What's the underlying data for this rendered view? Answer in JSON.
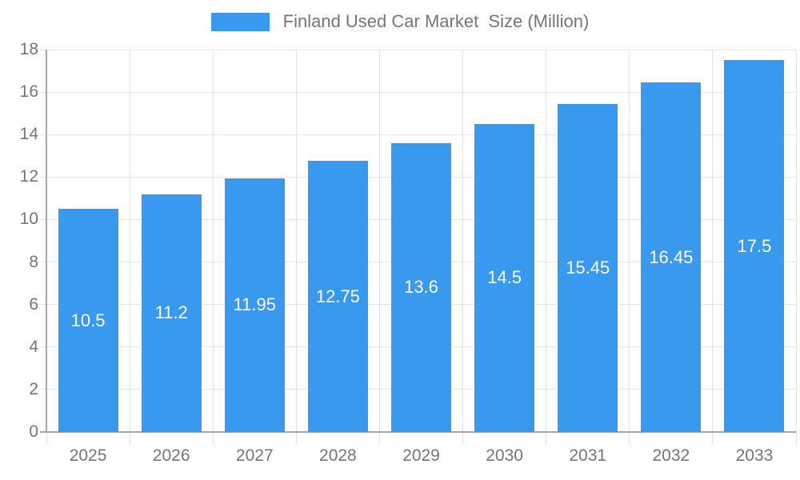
{
  "chart_data": {
    "type": "bar",
    "title": "Finland Used Car Market  Size (Million)",
    "legend_position": "top",
    "categories": [
      "2025",
      "2026",
      "2027",
      "2028",
      "2029",
      "2030",
      "2031",
      "2032",
      "2033"
    ],
    "values": [
      10.5,
      11.2,
      11.95,
      12.75,
      13.6,
      14.5,
      15.45,
      16.45,
      17.5
    ],
    "value_labels": [
      "10.5",
      "11.2",
      "11.95",
      "12.75",
      "13.6",
      "14.5",
      "15.45",
      "16.45",
      "17.5"
    ],
    "xlabel": "",
    "ylabel": "",
    "ylim": [
      0,
      18
    ],
    "ytick_step": 2,
    "grid": true,
    "colors": {
      "bar": "#3999EE",
      "bar_value_text": "#FFFFFF",
      "axis_text": "#757575",
      "legend_text": "#757575",
      "gridline": "#E6E6E6",
      "vertical_gridline": "#E0E0E0",
      "axis_line": "#A6A6A6"
    }
  }
}
